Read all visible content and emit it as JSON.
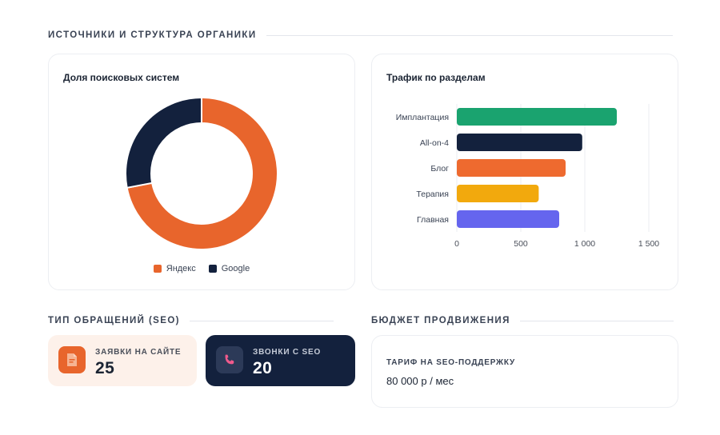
{
  "sections": {
    "organic": "ИСТОЧНИКИ И СТРУКТУРА ОРГАНИКИ",
    "requests": "ТИП ОБРАЩЕНИЙ (SEO)",
    "budget": "БЮДЖЕТ ПРОДВИЖЕНИЯ"
  },
  "colors": {
    "yandex": "#e8652c",
    "google": "#13213d",
    "implant": "#1aa36f",
    "allon4": "#13213d",
    "blog": "#ee6a2f",
    "therapy": "#f2a90d",
    "home": "#6565ee"
  },
  "chart_data": [
    {
      "type": "pie",
      "title": "Доля поисковых систем",
      "labels": [
        "Яндекс",
        "Google"
      ],
      "values": [
        72,
        28
      ],
      "legend": "bottom"
    },
    {
      "type": "bar",
      "orientation": "horizontal",
      "title": "Трафик по разделам",
      "categories": [
        "Имплантация",
        "All-on-4",
        "Блог",
        "Терапия",
        "Главная"
      ],
      "values": [
        1250,
        980,
        850,
        640,
        800
      ],
      "xlim": [
        0,
        1500
      ],
      "xticks": [
        0,
        500,
        1000,
        1500
      ],
      "xtick_labels": [
        "0",
        "500",
        "1 000",
        "1 500"
      ],
      "grid": true
    }
  ],
  "stats": {
    "site_requests": {
      "label": "ЗАЯВКИ НА САЙТЕ",
      "value": "25",
      "icon": "document-icon"
    },
    "seo_calls": {
      "label": "ЗВОНКИ С SEO",
      "value": "20",
      "icon": "phone-icon"
    }
  },
  "budget": {
    "label": "ТАРИФ НА SEO-ПОДДЕРЖКУ",
    "value": "80 000 р / мес"
  }
}
